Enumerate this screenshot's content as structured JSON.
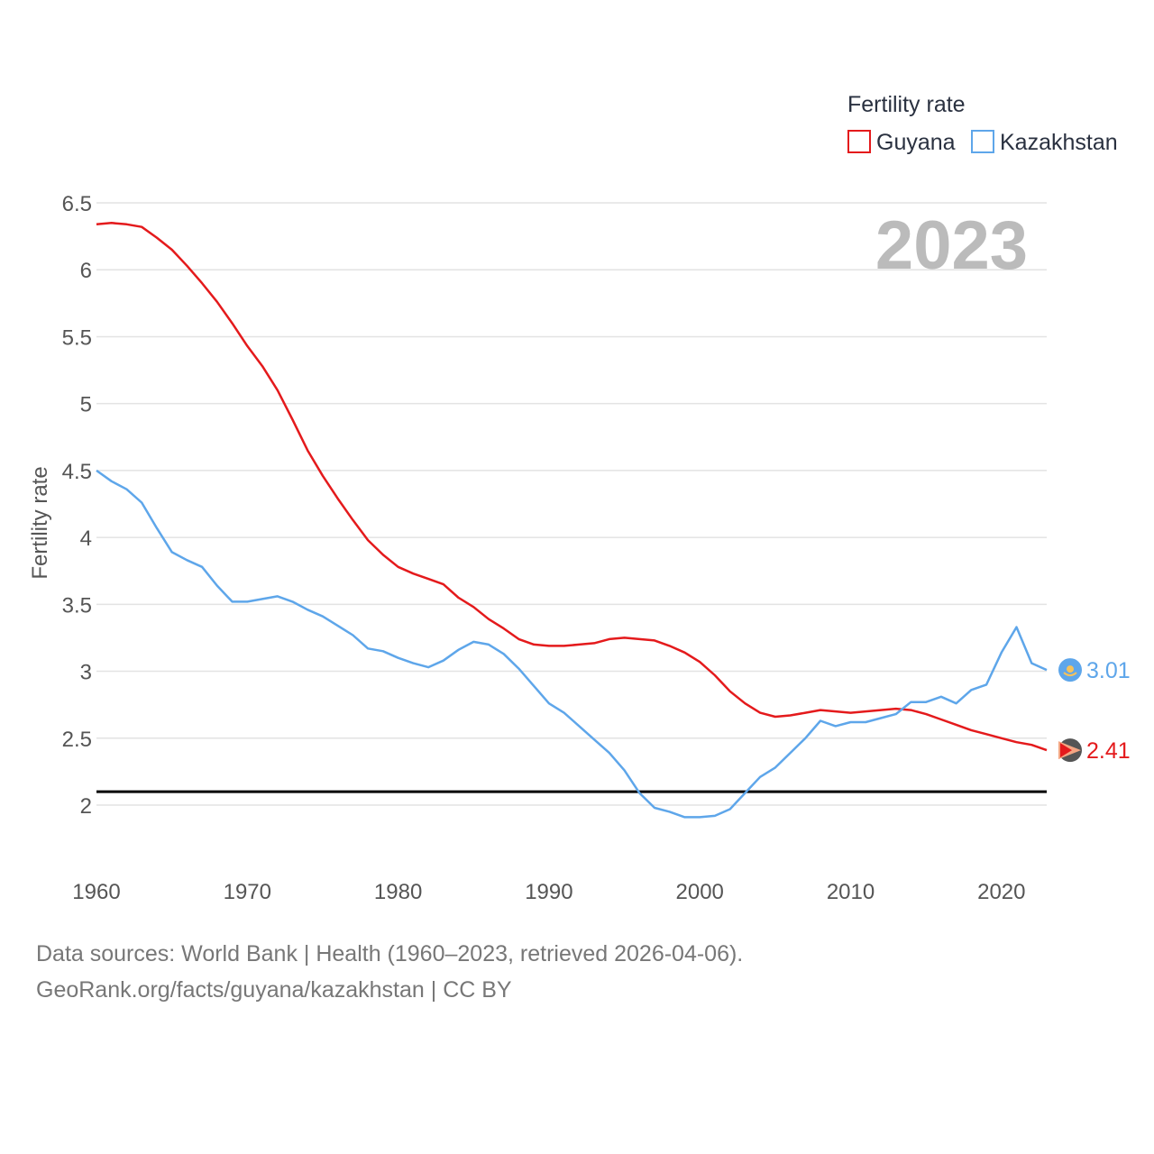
{
  "chart_data": {
    "type": "line",
    "legend_title": "Fertility rate",
    "ylabel": "Fertility rate",
    "xlabel": "",
    "year_label": "2023",
    "ylim": [
      1.6,
      6.5
    ],
    "xlim": [
      1960,
      2023
    ],
    "yticks": [
      2,
      2.5,
      3,
      3.5,
      4,
      4.5,
      5,
      5.5,
      6,
      6.5
    ],
    "ytick_labels": [
      "2",
      "2.5",
      "3",
      "3.5",
      "4",
      "4.5",
      "5",
      "5.5",
      "6",
      "6.5"
    ],
    "xticks": [
      1960,
      1970,
      1980,
      1990,
      2000,
      2010,
      2020
    ],
    "xtick_labels": [
      "1960",
      "1970",
      "1980",
      "1990",
      "2000",
      "2010",
      "2020"
    ],
    "reference_line": 2.1,
    "legend_position": "top-right",
    "x": [
      1960,
      1961,
      1962,
      1963,
      1964,
      1965,
      1966,
      1967,
      1968,
      1969,
      1970,
      1971,
      1972,
      1973,
      1974,
      1975,
      1976,
      1977,
      1978,
      1979,
      1980,
      1981,
      1982,
      1983,
      1984,
      1985,
      1986,
      1987,
      1988,
      1989,
      1990,
      1991,
      1992,
      1993,
      1994,
      1995,
      1996,
      1997,
      1998,
      1999,
      2000,
      2001,
      2002,
      2003,
      2004,
      2005,
      2006,
      2007,
      2008,
      2009,
      2010,
      2011,
      2012,
      2013,
      2014,
      2015,
      2016,
      2017,
      2018,
      2019,
      2020,
      2021,
      2022,
      2023
    ],
    "series": [
      {
        "name": "Guyana",
        "color": "#e41a1c",
        "end_label": "2.41",
        "values": [
          6.34,
          6.35,
          6.34,
          6.32,
          6.24,
          6.15,
          6.03,
          5.9,
          5.76,
          5.6,
          5.43,
          5.28,
          5.1,
          4.88,
          4.65,
          4.46,
          4.29,
          4.13,
          3.98,
          3.87,
          3.78,
          3.73,
          3.69,
          3.65,
          3.55,
          3.48,
          3.39,
          3.32,
          3.24,
          3.2,
          3.19,
          3.19,
          3.2,
          3.21,
          3.24,
          3.25,
          3.24,
          3.23,
          3.19,
          3.14,
          3.07,
          2.97,
          2.85,
          2.76,
          2.69,
          2.66,
          2.67,
          2.69,
          2.71,
          2.7,
          2.69,
          2.7,
          2.71,
          2.72,
          2.71,
          2.68,
          2.64,
          2.6,
          2.56,
          2.53,
          2.5,
          2.47,
          2.45,
          2.41
        ]
      },
      {
        "name": "Kazakhstan",
        "color": "#5ea6ea",
        "end_label": "3.01",
        "values": [
          4.5,
          4.42,
          4.36,
          4.26,
          4.07,
          3.89,
          3.83,
          3.78,
          3.64,
          3.52,
          3.52,
          3.54,
          3.56,
          3.52,
          3.46,
          3.41,
          3.34,
          3.27,
          3.17,
          3.15,
          3.1,
          3.06,
          3.03,
          3.08,
          3.16,
          3.22,
          3.2,
          3.13,
          3.02,
          2.89,
          2.76,
          2.69,
          2.59,
          2.49,
          2.39,
          2.26,
          2.09,
          1.98,
          1.95,
          1.91,
          1.91,
          1.92,
          1.97,
          2.09,
          2.21,
          2.28,
          2.39,
          2.5,
          2.63,
          2.59,
          2.62,
          2.62,
          2.65,
          2.68,
          2.77,
          2.77,
          2.81,
          2.76,
          2.86,
          2.9,
          3.14,
          3.33,
          3.06,
          3.01
        ]
      }
    ]
  },
  "footer": {
    "line1": "Data sources: World Bank | Health (1960–2023, retrieved 2026-04-06).",
    "line2": "GeoRank.org/facts/guyana/kazakhstan | CC BY"
  }
}
